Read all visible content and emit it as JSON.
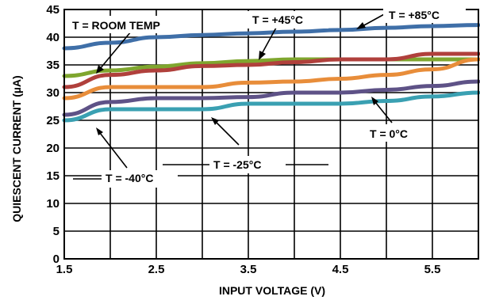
{
  "chart_data": {
    "type": "line",
    "xlabel": "INPUT VOLTAGE (V)",
    "ylabel": "QUIESCENT CURRENT (µA)",
    "xlim": [
      1.5,
      6.0
    ],
    "ylim": [
      0,
      45
    ],
    "x_ticks": [
      "1.5",
      "2.5",
      "3.5",
      "4.5",
      "5.5"
    ],
    "x_tick_values": [
      1.5,
      2.5,
      3.5,
      4.5,
      5.5
    ],
    "y_ticks": [
      "0",
      "5",
      "10",
      "15",
      "20",
      "25",
      "30",
      "35",
      "40",
      "45"
    ],
    "y_tick_values": [
      0,
      5,
      10,
      15,
      20,
      25,
      30,
      35,
      40,
      45
    ],
    "grid": true,
    "series": [
      {
        "name": "T = +85°C",
        "color": "#3f6fa8",
        "x": [
          1.5,
          2.0,
          2.5,
          3.0,
          3.5,
          4.0,
          4.5,
          5.0,
          5.5,
          6.0
        ],
        "y": [
          38.0,
          39.0,
          40.0,
          40.4,
          40.7,
          41.0,
          41.3,
          41.7,
          42.0,
          42.2
        ]
      },
      {
        "name": "T = +45°C",
        "color": "#7fa62e",
        "x": [
          1.5,
          2.0,
          2.5,
          3.0,
          3.5,
          4.0,
          4.5,
          5.0,
          5.5,
          6.0
        ],
        "y": [
          33.0,
          34.0,
          34.7,
          35.3,
          35.7,
          36.0,
          36.0,
          36.0,
          36.0,
          36.0
        ]
      },
      {
        "name": "T = ROOM TEMP",
        "color": "#b0403c",
        "x": [
          1.5,
          2.0,
          2.5,
          3.0,
          3.5,
          4.0,
          4.5,
          5.0,
          5.5,
          6.0
        ],
        "y": [
          31.0,
          33.2,
          34.0,
          34.8,
          35.0,
          35.5,
          36.0,
          36.0,
          37.0,
          37.0
        ]
      },
      {
        "name": "T = 0°C",
        "color": "#e88d3a",
        "x": [
          1.5,
          2.0,
          2.5,
          3.0,
          3.5,
          4.0,
          4.5,
          5.0,
          5.5,
          6.0
        ],
        "y": [
          29.0,
          31.0,
          31.0,
          31.0,
          31.8,
          32.0,
          32.5,
          33.2,
          34.2,
          36.0
        ]
      },
      {
        "name": "T = -25°C",
        "color": "#5e5287",
        "x": [
          1.5,
          2.0,
          2.5,
          3.0,
          3.5,
          4.0,
          4.5,
          5.0,
          5.5,
          6.0
        ],
        "y": [
          26.0,
          28.3,
          29.0,
          29.0,
          29.2,
          30.0,
          30.0,
          30.5,
          31.2,
          32.0
        ]
      },
      {
        "name": "T = -40°C",
        "color": "#3aa0b2",
        "x": [
          1.5,
          2.0,
          2.5,
          3.0,
          3.5,
          4.0,
          4.5,
          5.0,
          5.5,
          6.0
        ],
        "y": [
          25.0,
          27.0,
          27.0,
          27.0,
          28.0,
          28.0,
          28.0,
          28.5,
          29.3,
          30.0
        ]
      }
    ]
  }
}
